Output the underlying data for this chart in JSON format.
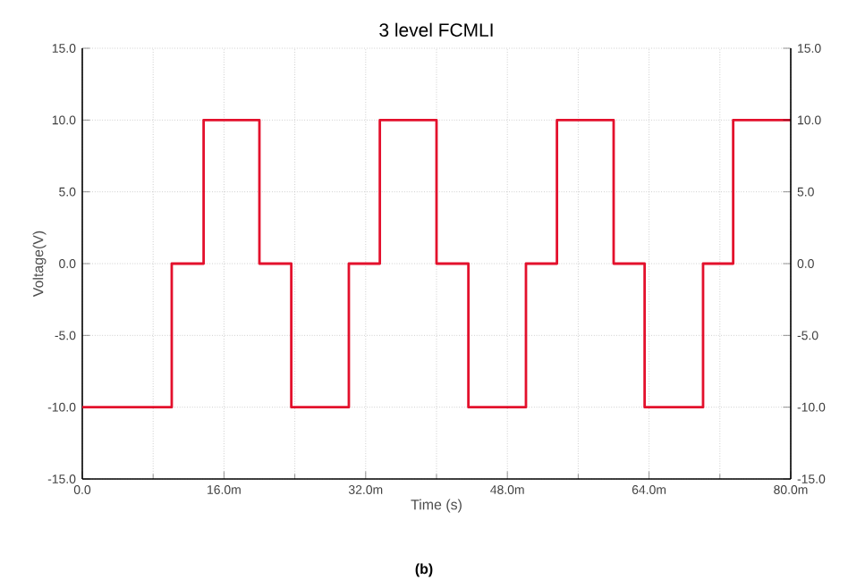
{
  "chart_data": {
    "type": "step",
    "title": "3 level FCMLI",
    "xlabel": "Time (s)",
    "ylabel": "Voltage(V)",
    "x": [
      0,
      10.1,
      13.7,
      20.0,
      23.6,
      30.1,
      33.6,
      40.0,
      43.6,
      50.1,
      53.6,
      60.0,
      63.5,
      70.1,
      73.5,
      80.0
    ],
    "series": [
      {
        "color": "#e3102c",
        "values": [
          -10,
          0,
          10,
          0,
          -10,
          0,
          10,
          0,
          -10,
          0,
          10,
          0,
          -10,
          0,
          10,
          10
        ]
      }
    ],
    "xlim": [
      0,
      80
    ],
    "xticks": [
      {
        "value": 0,
        "label": "0.0"
      },
      {
        "value": 16,
        "label": "16.0m"
      },
      {
        "value": 32,
        "label": "32.0m"
      },
      {
        "value": 48,
        "label": "48.0m"
      },
      {
        "value": 64,
        "label": "64.0m"
      },
      {
        "value": 80,
        "label": "80.0m"
      }
    ],
    "ylim": [
      -15,
      15
    ],
    "yticks": [
      {
        "value": -15,
        "label": "-15.0"
      },
      {
        "value": -10,
        "label": "-10.0"
      },
      {
        "value": -5,
        "label": "-5.0"
      },
      {
        "value": 0,
        "label": "0.0"
      },
      {
        "value": 5,
        "label": "5.0"
      },
      {
        "value": 10,
        "label": "10.0"
      },
      {
        "value": 15,
        "label": "15.0"
      }
    ],
    "y2lim": [
      -15,
      15
    ],
    "y2ticks": [
      {
        "value": -15,
        "label": "-15.0"
      },
      {
        "value": -10,
        "label": "-10.0"
      },
      {
        "value": -5,
        "label": "-5.0"
      },
      {
        "value": 0,
        "label": "0.0"
      },
      {
        "value": 5,
        "label": "5.0"
      },
      {
        "value": 10,
        "label": "10.0"
      },
      {
        "value": 15,
        "label": "15.0"
      }
    ],
    "grid": true,
    "marker": "none",
    "line_style": "solid",
    "annotations": [
      "(b)"
    ]
  }
}
